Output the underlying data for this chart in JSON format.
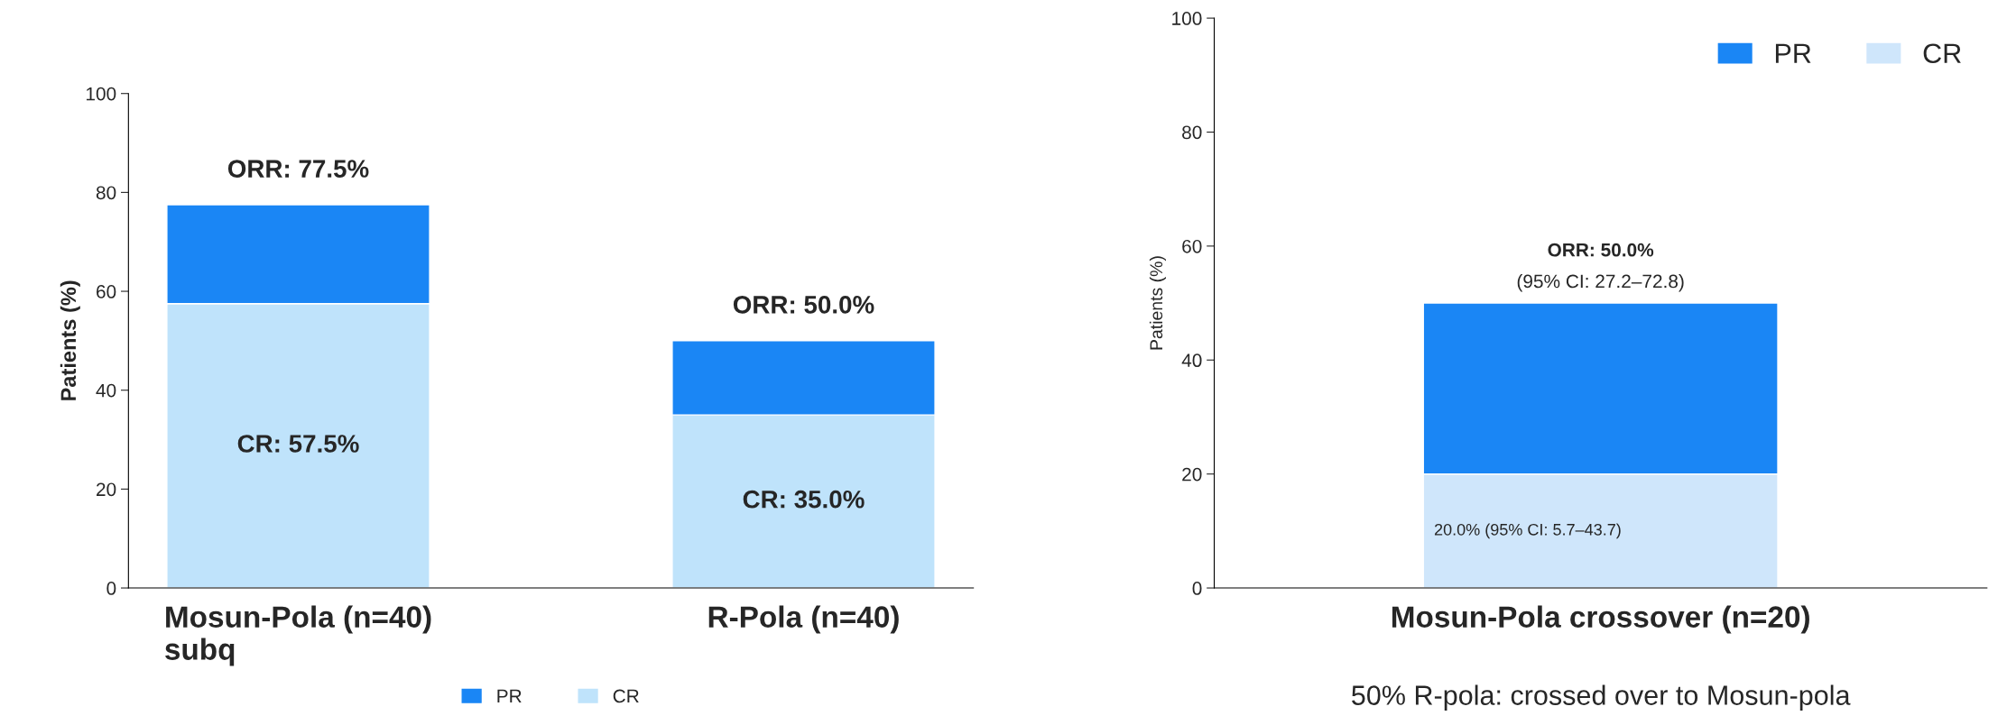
{
  "chart_data": [
    {
      "type": "bar",
      "stacked": true,
      "categories": [
        "Mosun-Pola (n=40)\nsubq",
        "R-Pola (n=40)"
      ],
      "ylabel": "Patients (%)",
      "ylim": [
        0,
        100
      ],
      "yticks": [
        0,
        20,
        40,
        60,
        80,
        100
      ],
      "legend": "bottom",
      "grid": false,
      "series": [
        {
          "name": "CR",
          "color": "#bfe3fb",
          "values": [
            57.5,
            35.0
          ],
          "value_labels": [
            "CR: 57.5%",
            "CR: 35.0%"
          ]
        },
        {
          "name": "PR",
          "color": "#1a86f5",
          "values": [
            20.0,
            15.0
          ]
        }
      ],
      "totals": [
        "ORR: 77.5%",
        "ORR: 50.0%"
      ]
    },
    {
      "type": "bar",
      "stacked": true,
      "categories": [
        "Mosun-Pola crossover (n=20)"
      ],
      "ylabel": "Patients (%)",
      "ylim": [
        0,
        100
      ],
      "yticks": [
        0,
        20,
        40,
        60,
        80,
        100
      ],
      "legend": "top right",
      "grid": false,
      "series": [
        {
          "name": "CR",
          "color": "#cfe6fb",
          "values": [
            20.0
          ],
          "value_labels": [
            "20.0% (95% CI: 5.7–43.7)"
          ]
        },
        {
          "name": "PR",
          "color": "#1a86f5",
          "values": [
            30.0
          ]
        }
      ],
      "totals": [
        "ORR: 50.0%"
      ],
      "annotations": [
        "(95% CI: 27.2–72.8)",
        "50% R-pola: crossed over to Mosun-pola"
      ]
    }
  ]
}
